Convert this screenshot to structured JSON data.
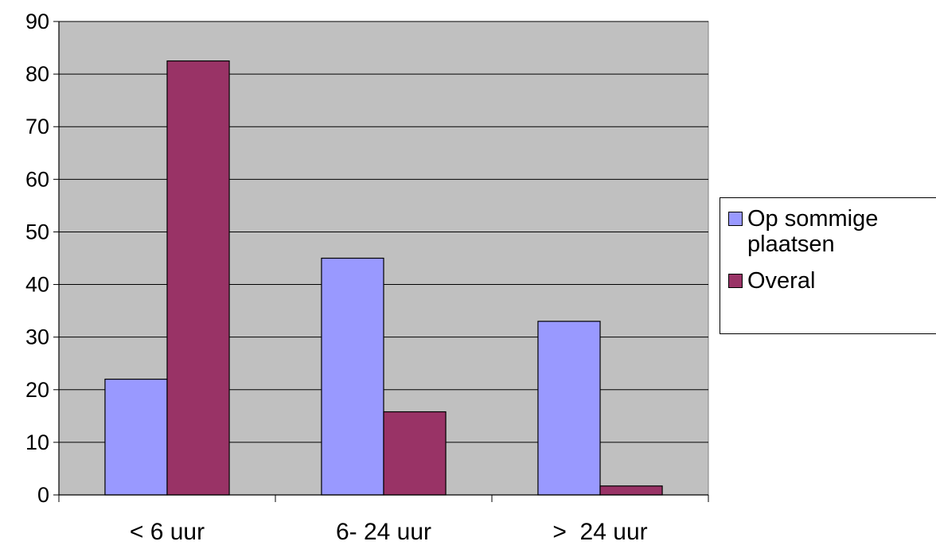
{
  "chart_data": {
    "type": "bar",
    "categories": [
      "< 6 uur",
      "6- 24 uur",
      ">  24 uur"
    ],
    "series": [
      {
        "name": "Op sommige plaatsen",
        "values": [
          22,
          45,
          33
        ],
        "color": "#9999ff"
      },
      {
        "name": "Overal",
        "values": [
          82.5,
          15.8,
          1.7
        ],
        "color": "#993366"
      }
    ],
    "ylim": [
      0,
      90
    ],
    "yticks": [
      0,
      10,
      20,
      30,
      40,
      50,
      60,
      70,
      80,
      90
    ],
    "grid": true,
    "plot_background": "#c0c0c0",
    "legend_position": "right",
    "title": "",
    "xlabel": "",
    "ylabel": ""
  }
}
